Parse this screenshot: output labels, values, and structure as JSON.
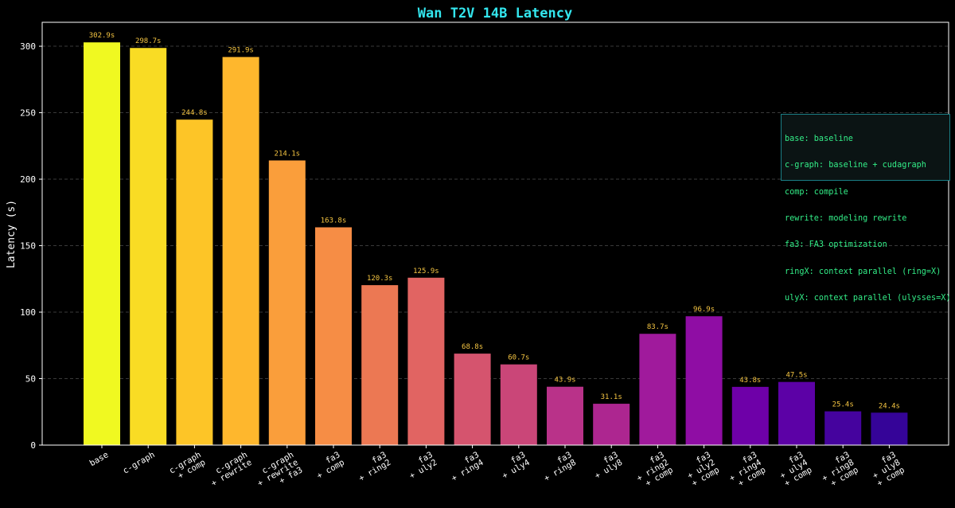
{
  "chart_data": {
    "type": "bar",
    "title": "Wan T2V 14B Latency",
    "xlabel": "",
    "ylabel": "Latency (s)",
    "ylim": [
      0,
      318
    ],
    "yticks": [
      0,
      50,
      100,
      150,
      200,
      250,
      300
    ],
    "grid": "horizontal dashed",
    "categories": [
      [
        "base"
      ],
      [
        "c-graph"
      ],
      [
        "c-graph",
        "+ comp"
      ],
      [
        "c-graph",
        "+ rewrite"
      ],
      [
        "c-graph",
        "+ rewrite",
        "+ fa3"
      ],
      [
        "fa3",
        "+ comp"
      ],
      [
        "fa3",
        "+ ring2"
      ],
      [
        "fa3",
        "+ uly2"
      ],
      [
        "fa3",
        "+ ring4"
      ],
      [
        "fa3",
        "+ uly4"
      ],
      [
        "fa3",
        "+ ring8"
      ],
      [
        "fa3",
        "+ uly8"
      ],
      [
        "fa3",
        "+ ring2",
        "+ comp"
      ],
      [
        "fa3",
        "+ uly2",
        "+ comp"
      ],
      [
        "fa3",
        "+ ring4",
        "+ comp"
      ],
      [
        "fa3",
        "+ uly4",
        "+ comp"
      ],
      [
        "fa3",
        "+ ring8",
        "+ comp"
      ],
      [
        "fa3",
        "+ uly8",
        "+ comp"
      ]
    ],
    "values": [
      302.9,
      298.7,
      244.8,
      291.9,
      214.1,
      163.8,
      120.3,
      125.9,
      68.8,
      60.7,
      43.9,
      31.1,
      83.7,
      96.9,
      43.8,
      47.5,
      25.4,
      24.4
    ],
    "value_labels": [
      "302.9s",
      "298.7s",
      "244.8s",
      "291.9s",
      "214.1s",
      "163.8s",
      "120.3s",
      "125.9s",
      "68.8s",
      "60.7s",
      "43.9s",
      "31.1s",
      "83.7s",
      "96.9s",
      "43.8s",
      "47.5s",
      "25.4s",
      "24.4s"
    ],
    "bar_colors": [
      "#f0f921",
      "#f9dc24",
      "#fdc527",
      "#feb72d",
      "#fa9e3b",
      "#f68d45",
      "#ec7853",
      "#e16462",
      "#d5546e",
      "#ca4678",
      "#b93289",
      "#ad2690",
      "#a01a9c",
      "#8f0da4",
      "#6e00a8",
      "#5c01a6",
      "#45039e",
      "#350498"
    ],
    "legend_position": "right",
    "legend": [
      "base: baseline",
      "c-graph: baseline + cudagraph",
      "comp: compile",
      "rewrite: modeling rewrite",
      "fa3: FA3 optimization",
      "ringX: context parallel (ring=X)",
      "ulyX: context parallel (ulysses=X)"
    ],
    "colors": {
      "title": "#33e6ee",
      "value_label": "#f5c542",
      "axis": "#ffffff",
      "grid": "#3a3a3a",
      "legend_text": "#33ee88",
      "legend_border": "#1a7f86"
    }
  }
}
